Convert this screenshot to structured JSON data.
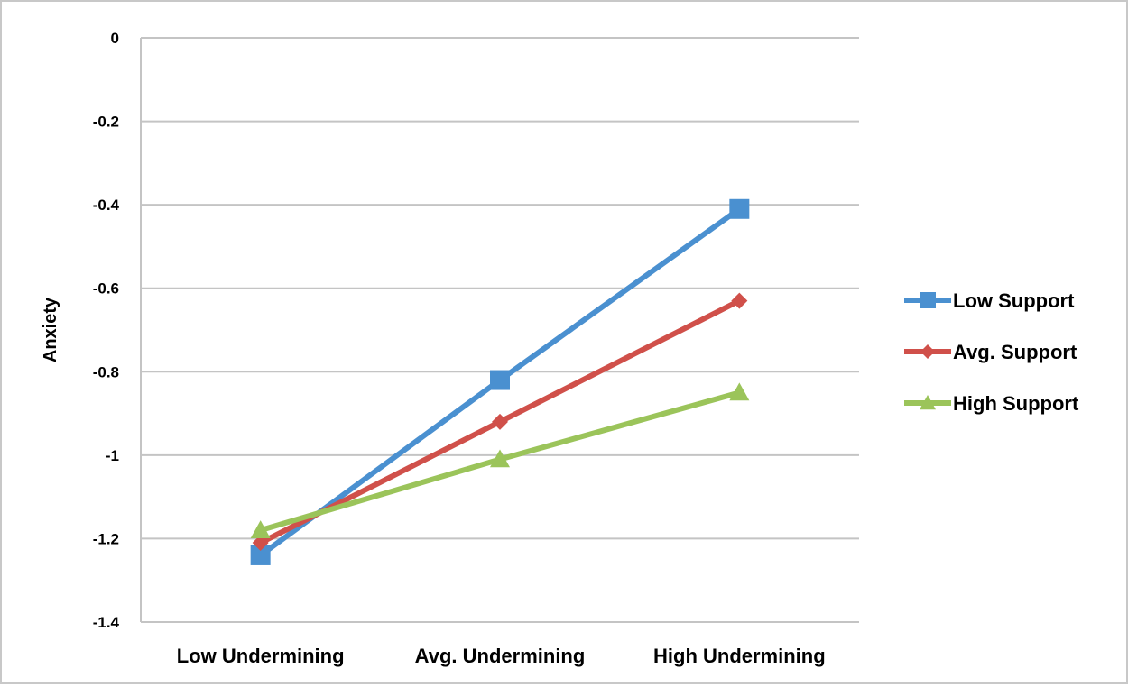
{
  "chart_data": {
    "type": "line",
    "title": "",
    "xlabel": "",
    "ylabel": "Anxiety",
    "categories": [
      "Low Undermining",
      "Avg. Undermining",
      "High Undermining"
    ],
    "ylim": [
      -1.4,
      0
    ],
    "yticks": [
      0,
      -0.2,
      -0.4,
      -0.6,
      -0.8,
      -1,
      -1.2,
      -1.4
    ],
    "ytick_labels": [
      "0",
      "-0.2",
      "-0.4",
      "-0.6",
      "-0.8",
      "-1",
      "-1.2",
      "-1.4"
    ],
    "grid": true,
    "legend": "right",
    "series": [
      {
        "name": "Low Support",
        "values": [
          -1.24,
          -0.82,
          -0.41
        ],
        "color": "#4a90d0",
        "marker": "square"
      },
      {
        "name": "Avg. Support",
        "values": [
          -1.21,
          -0.92,
          -0.63
        ],
        "color": "#d0504a",
        "marker": "diamond"
      },
      {
        "name": "High Support",
        "values": [
          -1.18,
          -1.01,
          -0.85
        ],
        "color": "#9bc45a",
        "marker": "triangle"
      }
    ]
  }
}
